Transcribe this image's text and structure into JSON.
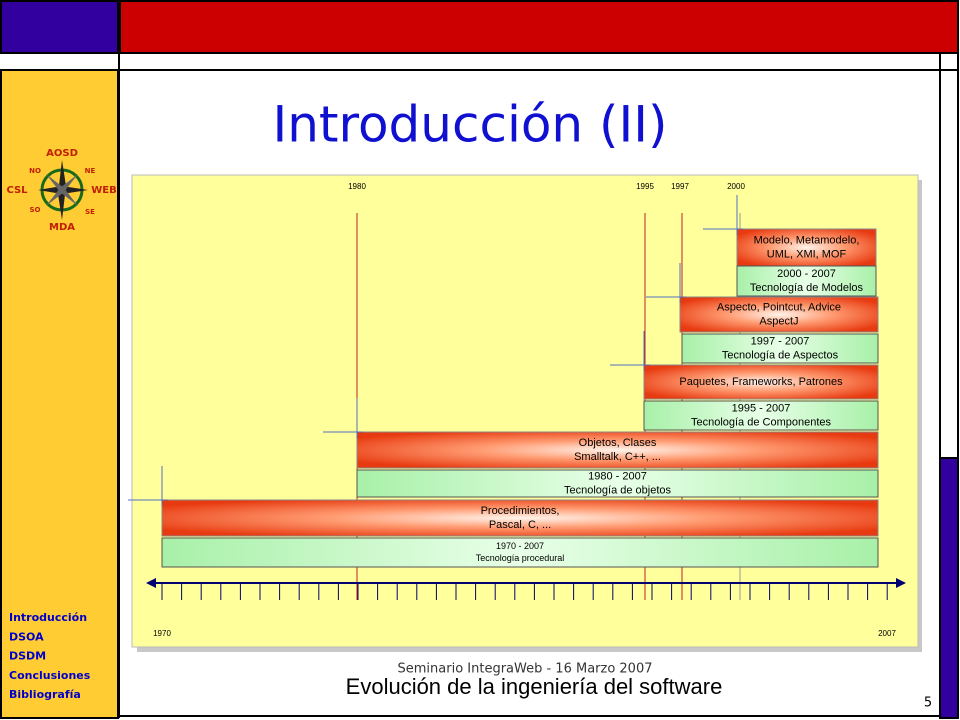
{
  "header": {
    "title": "Introducción (II)"
  },
  "logo": {
    "top": "AOSD",
    "left": "CSL",
    "right": "WEB",
    "bottom": "MDA",
    "ne": "NE",
    "no": "NO",
    "se": "SE",
    "so": "SO"
  },
  "nav": [
    "Introducción",
    "DSOA",
    "DSDM",
    "Conclusiones",
    "Bibliografía"
  ],
  "diagram": {
    "years_top": [
      "1980",
      "1995",
      "1997",
      "2000"
    ],
    "years_bottom": [
      "1970",
      "2007"
    ],
    "blocks": [
      {
        "items": [
          "Modelo, Metamodelo,",
          "UML, XMI, MOF"
        ],
        "period": [
          "2000 - 2007",
          "Tecnología de Modelos"
        ]
      },
      {
        "items": [
          "Aspecto, Pointcut, Advice",
          "AspectJ"
        ],
        "period": [
          "1997 - 2007",
          "Tecnología de Aspectos"
        ]
      },
      {
        "items": [
          "Paquetes, Frameworks, Patrones"
        ],
        "period": [
          "1995 - 2007",
          "Tecnología de Componentes"
        ]
      },
      {
        "items": [
          "Objetos, Clases",
          "Smalltalk, C++, ..."
        ],
        "period": [
          "1980 - 2007",
          "Tecnología de objetos"
        ]
      },
      {
        "items": [
          "Procedimientos,",
          "Pascal, C, ..."
        ],
        "period": [
          "1970 - 2007",
          "Tecnología procedural"
        ]
      }
    ]
  },
  "footer": {
    "event": "Seminario IntegraWeb - 16 Marzo 2007",
    "subtitle": "Evolución de la ingeniería del software",
    "page": "5"
  }
}
